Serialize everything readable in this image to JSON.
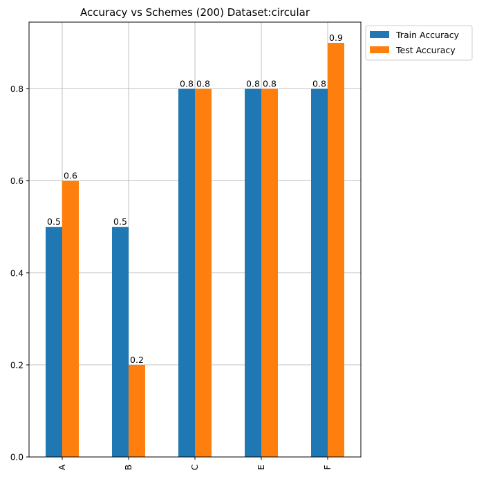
{
  "chart_data": {
    "type": "bar",
    "title": "Accuracy vs Schemes (200) Dataset:circular",
    "xlabel": "",
    "ylabel": "",
    "categories": [
      "A",
      "B",
      "C",
      "E",
      "F"
    ],
    "series": [
      {
        "name": "Train Accuracy",
        "color": "#1f77b4",
        "values": [
          0.5,
          0.5,
          0.8,
          0.8,
          0.8
        ],
        "labels": [
          "0.5",
          "0.5",
          "0.8",
          "0.8",
          "0.8"
        ]
      },
      {
        "name": "Test Accuracy",
        "color": "#ff7f0e",
        "values": [
          0.6,
          0.2,
          0.8,
          0.8,
          0.9
        ],
        "labels": [
          "0.6",
          "0.2",
          "0.8",
          "0.8",
          "0.9"
        ]
      }
    ],
    "ylim": [
      0,
      0.945
    ],
    "yticks": [
      0.0,
      0.2,
      0.4,
      0.6,
      0.8
    ],
    "ytick_labels": [
      "0.0",
      "0.2",
      "0.4",
      "0.6",
      "0.8"
    ],
    "grid": true,
    "legend": "outside upper right"
  }
}
